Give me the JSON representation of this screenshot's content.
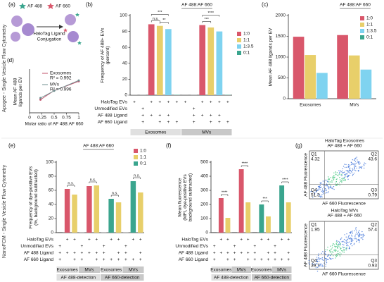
{
  "side_labels": [
    "Apogee - Single Vesicle Flow Cytometry",
    "NanoFCM - Single Vesicle Flow Cytometry"
  ],
  "panel_a": {
    "panel": "(a)",
    "legend": [
      "AF 488",
      "AF 660"
    ],
    "caption": [
      "HaloTag Ligand",
      "Conjugation"
    ]
  },
  "chart_data": [
    {
      "type": "bar",
      "panel": "(b)",
      "title": "AF 488:AF 660",
      "y_label": [
        "Frequency of AF 488+ EVs",
        "(percent)"
      ],
      "ylim": [
        0,
        100
      ],
      "yticks": [
        0,
        20,
        40,
        60,
        80,
        100
      ],
      "values": [
        0.5,
        0.3,
        89,
        87,
        83,
        0.4,
        0.6,
        0.3,
        88,
        85,
        80,
        0.4
      ],
      "colors": [
        "#8c8c8c",
        "#8c8c8c",
        "#d9576b",
        "#e8cf6a",
        "#7fd3f0",
        "#3aa58e",
        "#8c8c8c",
        "#8c8c8c",
        "#d9576b",
        "#e8cf6a",
        "#7fd3f0",
        "#3aa58e"
      ],
      "legend": [
        {
          "name": "1:0",
          "color": "#d9576b"
        },
        {
          "name": "1:1",
          "color": "#e8cf6a"
        },
        {
          "name": "1:3.5",
          "color": "#7fd3f0"
        },
        {
          "name": "0:1",
          "color": "#3aa58e"
        }
      ],
      "significance": [
        "***",
        "n.s.",
        "**",
        "****",
        "***"
      ],
      "condition_rows": [
        "HaloTag EVs",
        "Unmodified EVs",
        "AF 488 Ligand",
        "AF 660 Ligand"
      ],
      "conditions": [
        [
          "+",
          null,
          "+",
          "+",
          "+",
          "+",
          "+",
          null,
          "+",
          "+",
          "+",
          "+"
        ],
        [
          null,
          "+",
          null,
          null,
          null,
          null,
          null,
          "+",
          null,
          null,
          null,
          null
        ],
        [
          null,
          "+",
          "+",
          "+",
          "+",
          null,
          null,
          "+",
          "+",
          "+",
          "+",
          null
        ],
        [
          null,
          "+",
          null,
          "+",
          "+",
          "+",
          null,
          "+",
          null,
          "+",
          "+",
          "+"
        ]
      ],
      "groups": [
        "Exosomes",
        "MVs"
      ]
    },
    {
      "type": "bar",
      "panel": "(c)",
      "title": "AF 488:AF 660",
      "y_label": [
        "Mean AF 488 ligands per EV"
      ],
      "ylim": [
        0,
        2000
      ],
      "yticks": [
        0,
        500,
        1000,
        1500,
        2000
      ],
      "categories": [
        "Exosomes",
        "MVs"
      ],
      "series": [
        {
          "name": "1:0",
          "color": "#d9576b",
          "values": [
            1490,
            1530
          ]
        },
        {
          "name": "1:1",
          "color": "#e8cf6a",
          "values": [
            1050,
            1040
          ]
        },
        {
          "name": "1:3.5",
          "color": "#7fd3f0",
          "values": [
            620,
            700
          ]
        },
        {
          "name": "0:1",
          "color": "#3aa58e",
          "values": [
            null,
            null
          ]
        }
      ]
    },
    {
      "type": "line",
      "panel": "(d)",
      "y_label": [
        "Mean AF 488",
        "ligands per EV"
      ],
      "x_label": "Molar ratio of AF 488:AF 660",
      "xlim": [
        0,
        1
      ],
      "xticks": [
        0,
        0.25,
        0.5,
        0.75,
        1
      ],
      "ylim": [
        0,
        2000
      ],
      "x": [
        0.222,
        0.5,
        1
      ],
      "series": [
        {
          "name": "Exosomes",
          "color": "#c0506a",
          "values": [
            620,
            1050,
            1490
          ]
        },
        {
          "name": "MVs",
          "color": "#6f8f8f",
          "values": [
            700,
            1040,
            1530
          ]
        }
      ],
      "annotations": [
        "R² = 0.992",
        "R² = 0.996"
      ]
    },
    {
      "type": "bar",
      "panel": "(e)",
      "title": "AF 488:AF 660",
      "y_label": [
        "Frequency of dye-positive EVs",
        "(%, background subtracted)"
      ],
      "ylim": [
        0,
        100
      ],
      "yticks": [
        0,
        20,
        40,
        60,
        80,
        100
      ],
      "values": [
        1,
        62,
        54,
        0.5,
        66,
        67,
        0.5,
        48,
        43,
        0.5,
        73,
        57
      ],
      "colors": [
        "#8c8c8c",
        "#d9576b",
        "#e8cf6a",
        "#8c8c8c",
        "#d9576b",
        "#e8cf6a",
        "#8c8c8c",
        "#3aa58e",
        "#e8cf6a",
        "#8c8c8c",
        "#3aa58e",
        "#e8cf6a"
      ],
      "legend": [
        {
          "name": "1:0",
          "color": "#d9576b"
        },
        {
          "name": "1:1",
          "color": "#e8cf6a"
        },
        {
          "name": "0:1",
          "color": "#3aa58e"
        }
      ],
      "significance": [
        "n.s.",
        "n.s.",
        "n.s.",
        "n.s."
      ],
      "condition_rows": [
        "HaloTag EVs",
        "Unmodified EVs",
        "AF 488 Ligand",
        "AF 660 Ligand"
      ],
      "conditions": [
        [
          null,
          "+",
          "+",
          null,
          "+",
          "+",
          null,
          "+",
          "+",
          null,
          "+",
          "+"
        ],
        [
          "+",
          null,
          null,
          "+",
          null,
          null,
          "+",
          null,
          null,
          "+",
          null,
          null
        ],
        [
          "+",
          "+",
          "+",
          "+",
          "+",
          "+",
          "+",
          null,
          "+",
          "+",
          null,
          "+"
        ],
        [
          "+",
          null,
          "+",
          "+",
          null,
          "+",
          "+",
          "+",
          "+",
          "+",
          "+",
          "+"
        ]
      ],
      "groups": [
        "Exosomes",
        "MVs",
        "Exosomes",
        "MVs"
      ],
      "detection": [
        "AF 488-detection",
        "AF 660-detection"
      ]
    },
    {
      "type": "bar",
      "panel": "(f)",
      "y_label": [
        "Mean fluorescence",
        "(MFI, dye-positive EVs",
        "background subtracted)"
      ],
      "ylim": [
        0,
        500
      ],
      "yticks": [
        0,
        100,
        200,
        300,
        400,
        500
      ],
      "values": [
        5,
        245,
        105,
        5,
        450,
        215,
        5,
        200,
        115,
        5,
        335,
        215
      ],
      "colors": [
        "#8c8c8c",
        "#d9576b",
        "#e8cf6a",
        "#8c8c8c",
        "#d9576b",
        "#e8cf6a",
        "#8c8c8c",
        "#3aa58e",
        "#e8cf6a",
        "#8c8c8c",
        "#3aa58e",
        "#e8cf6a"
      ],
      "significance": [
        "****",
        "****",
        "***",
        "****"
      ],
      "condition_rows": [
        "HaloTag EVs",
        "Unmodified EVs",
        "AF 488 Ligand",
        "AF 660 Ligand"
      ],
      "conditions": [
        [
          null,
          "+",
          "+",
          null,
          "+",
          "+",
          null,
          "+",
          "+",
          null,
          "+",
          "+"
        ],
        [
          "+",
          null,
          null,
          "+",
          null,
          null,
          "+",
          null,
          null,
          "+",
          null,
          null
        ],
        [
          "+",
          "+",
          "+",
          "+",
          "+",
          "+",
          "+",
          null,
          "+",
          "+",
          null,
          "+"
        ],
        [
          "+",
          null,
          "+",
          "+",
          null,
          "+",
          "+",
          "+",
          "+",
          "+",
          "+",
          "+"
        ]
      ],
      "groups": [
        "Exosomes",
        "MVs",
        "Exosomes",
        "MVs"
      ],
      "detection": [
        "AF 488-detection",
        "AF 660-detection"
      ]
    },
    {
      "type": "flow",
      "panel": "(g)",
      "title": [
        "HaloTag Exosomes",
        "AF 488 + AF 660"
      ],
      "x_label": "AF 660 Fluorescence",
      "y_label": "AF 488 Fluorescence",
      "quadrants": [
        {
          "name": "Q1",
          "value": 4.32
        },
        {
          "name": "Q2",
          "value": 43.6
        },
        {
          "name": "Q3",
          "value": 0.79
        },
        {
          "name": "Q4",
          "value": 51.3
        }
      ]
    },
    {
      "type": "flow",
      "title": [
        "HaloTag MVs",
        "AF 488 + AF 660"
      ],
      "x_label": "AF 660 Fluorescence",
      "y_label": "AF 488 Fluorescence",
      "quadrants": [
        {
          "name": "Q1",
          "value": 1.95
        },
        {
          "name": "Q2",
          "value": 57.4
        },
        {
          "name": "Q3",
          "value": 0.93
        },
        {
          "name": "Q4",
          "value": 39.7
        }
      ]
    }
  ]
}
